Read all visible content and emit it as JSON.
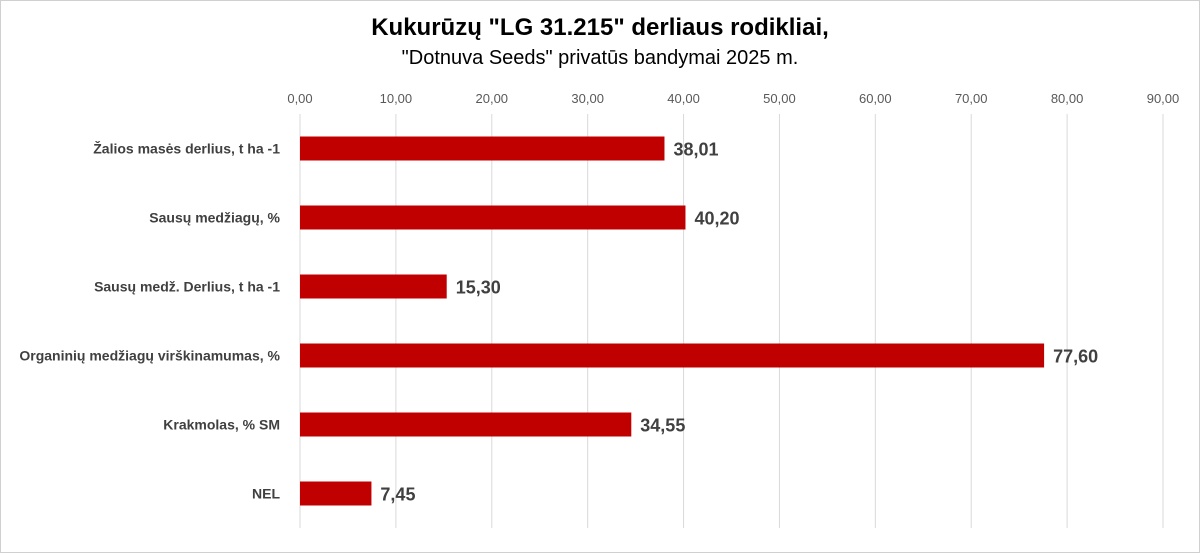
{
  "chart_data": {
    "type": "bar",
    "orientation": "horizontal",
    "title": "Kukurūzų \"LG 31.215\" derliaus rodikliai,",
    "subtitle": "\"Dotnuva Seeds\" privatūs bandymai 2025 m.",
    "categories": [
      "Žalios masės derlius, t ha -1",
      "Sausų medžiagų, %",
      "Sausų medž. Derlius, t ha -1",
      "Organinių medžiagų virškinamumas, %",
      "Krakmolas, % SM",
      "NEL"
    ],
    "values": [
      38.01,
      40.2,
      15.3,
      77.6,
      34.55,
      7.45
    ],
    "data_labels": [
      "38,01",
      "40,20",
      "15,30",
      "77,60",
      "34,55",
      "7,45"
    ],
    "xlim": [
      0,
      90
    ],
    "x_ticks": [
      0,
      10,
      20,
      30,
      40,
      50,
      60,
      70,
      80,
      90
    ],
    "x_tick_labels": [
      "0,00",
      "10,00",
      "20,00",
      "30,00",
      "40,00",
      "50,00",
      "60,00",
      "70,00",
      "80,00",
      "90,00"
    ],
    "x_axis_position": "top",
    "grid": true,
    "legend": "none",
    "bar_color": "#c00000",
    "grid_color": "#d9d9d9"
  }
}
